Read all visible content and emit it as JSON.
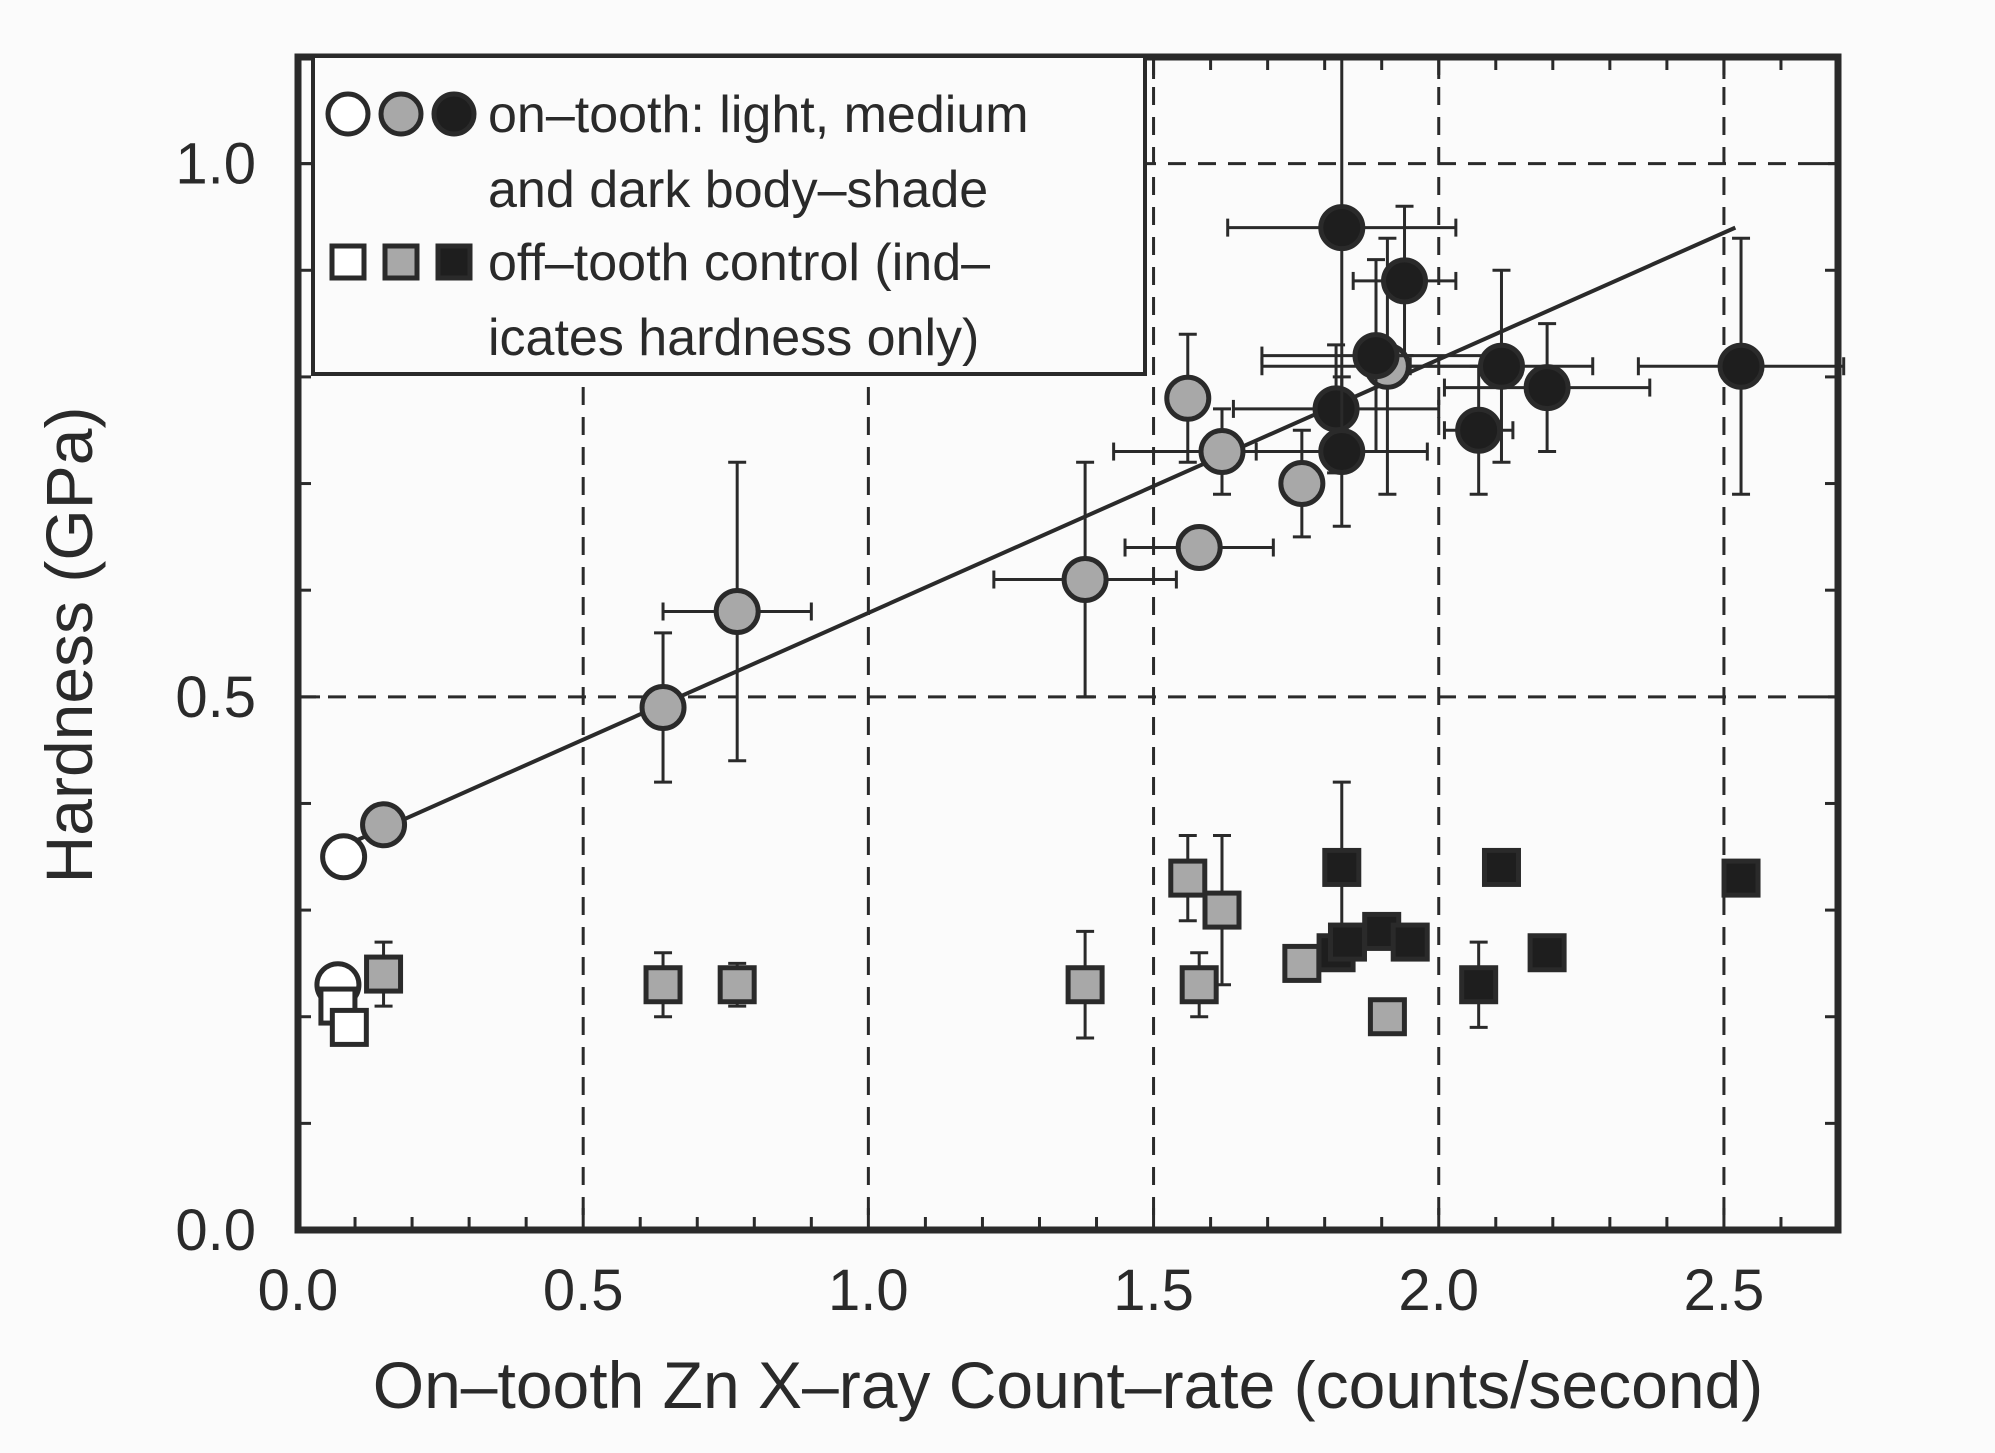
{
  "chart_data": {
    "type": "scatter",
    "xlabel": "On–tooth Zn X–ray Count–rate (counts/second)",
    "ylabel": "Hardness (GPa)",
    "xlim": [
      0.0,
      2.7
    ],
    "ylim": [
      0.0,
      1.1
    ],
    "x_ticks": [
      {
        "value": 0.0,
        "label": "0.0"
      },
      {
        "value": 0.5,
        "label": "0.5"
      },
      {
        "value": 1.0,
        "label": "1.0"
      },
      {
        "value": 1.5,
        "label": "1.5"
      },
      {
        "value": 2.0,
        "label": "2.0"
      },
      {
        "value": 2.5,
        "label": "2.5"
      }
    ],
    "y_ticks": [
      {
        "value": 0.0,
        "label": "0.0"
      },
      {
        "value": 0.5,
        "label": "0.5"
      },
      {
        "value": 1.0,
        "label": "1.0"
      }
    ],
    "x_minor_step": 0.1,
    "y_minor_step": 0.1,
    "grid": "dashed lines at x = 0.5, 1.0, 1.5, 2.0, 2.5 and y = 0.5, 1.0",
    "legend": {
      "placement": "top-left",
      "rows": [
        {
          "symbols": "circle",
          "lines": [
            "on–tooth: light, medium",
            "and dark body–shade"
          ]
        },
        {
          "symbols": "square",
          "lines": [
            "off–tooth control (ind–",
            "icates hardness only)"
          ]
        }
      ]
    },
    "colors": {
      "light": "#ffffff",
      "medium": "#a8a8a8",
      "dark": "#1e1e1e",
      "ink": "#2a2a2a"
    },
    "fit_line": {
      "x": [
        0.08,
        2.52
      ],
      "y": [
        0.36,
        0.94
      ]
    },
    "series": [
      {
        "shade": "light",
        "marker": "circle",
        "points": [
          {
            "x": 0.08,
            "y": 0.35
          },
          {
            "x": 0.07,
            "y": 0.23
          }
        ]
      },
      {
        "shade": "medium",
        "marker": "circle",
        "points": [
          {
            "x": 0.15,
            "y": 0.38
          },
          {
            "x": 0.64,
            "y": 0.49,
            "yerr": 0.07
          },
          {
            "x": 0.77,
            "y": 0.58,
            "xerr": 0.13,
            "yerr": 0.14
          },
          {
            "x": 1.38,
            "y": 0.61,
            "xerr": 0.16,
            "yerr": 0.11
          },
          {
            "x": 1.56,
            "y": 0.78,
            "yerr": 0.06
          },
          {
            "x": 1.58,
            "y": 0.64,
            "xerr": 0.13
          },
          {
            "x": 1.62,
            "y": 0.73,
            "xerr": 0.19,
            "yerr": 0.04
          },
          {
            "x": 1.76,
            "y": 0.7,
            "yerr": 0.05
          },
          {
            "x": 1.91,
            "y": 0.81,
            "xerr": 0.22,
            "yerr": 0.12
          }
        ]
      },
      {
        "shade": "dark",
        "marker": "circle",
        "points": [
          {
            "x": 1.83,
            "y": 0.94,
            "xerr": 0.2,
            "yerr": 0.16
          },
          {
            "x": 1.94,
            "y": 0.89,
            "xerr": 0.09,
            "yerr": 0.07
          },
          {
            "x": 1.89,
            "y": 0.82,
            "xerr": 0.2,
            "yerr": 0.09
          },
          {
            "x": 1.82,
            "y": 0.77,
            "xerr": 0.18,
            "yerr": 0.06
          },
          {
            "x": 1.83,
            "y": 0.73,
            "xerr": 0.15,
            "yerr": 0.07
          },
          {
            "x": 2.07,
            "y": 0.75,
            "xerr": 0.06,
            "yerr": 0.06
          },
          {
            "x": 2.11,
            "y": 0.81,
            "xerr": 0.16,
            "yerr": 0.09
          },
          {
            "x": 2.19,
            "y": 0.79,
            "xerr": 0.18,
            "yerr": 0.06
          },
          {
            "x": 2.53,
            "y": 0.81,
            "xerr": 0.18,
            "yerr": 0.12
          }
        ]
      },
      {
        "shade": "light",
        "marker": "square",
        "points": [
          {
            "x": 0.07,
            "y": 0.21
          },
          {
            "x": 0.09,
            "y": 0.19
          }
        ]
      },
      {
        "shade": "medium",
        "marker": "square",
        "points": [
          {
            "x": 0.15,
            "y": 0.24,
            "yerr": 0.03
          },
          {
            "x": 0.64,
            "y": 0.23,
            "yerr": 0.03
          },
          {
            "x": 0.77,
            "y": 0.23,
            "yerr": 0.02
          },
          {
            "x": 1.38,
            "y": 0.23,
            "yerr": 0.05
          },
          {
            "x": 1.56,
            "y": 0.33,
            "yerr": 0.04
          },
          {
            "x": 1.62,
            "y": 0.3,
            "yerr": 0.07
          },
          {
            "x": 1.58,
            "y": 0.23,
            "yerr": 0.03
          },
          {
            "x": 1.76,
            "y": 0.25
          },
          {
            "x": 1.91,
            "y": 0.2
          }
        ]
      },
      {
        "shade": "dark",
        "marker": "square",
        "points": [
          {
            "x": 1.83,
            "y": 0.34,
            "yerr": 0.08
          },
          {
            "x": 1.82,
            "y": 0.26
          },
          {
            "x": 1.84,
            "y": 0.27
          },
          {
            "x": 1.9,
            "y": 0.28
          },
          {
            "x": 1.95,
            "y": 0.27
          },
          {
            "x": 2.07,
            "y": 0.23,
            "yerr": 0.04
          },
          {
            "x": 2.11,
            "y": 0.34
          },
          {
            "x": 2.19,
            "y": 0.26
          },
          {
            "x": 2.53,
            "y": 0.33
          }
        ]
      }
    ]
  }
}
